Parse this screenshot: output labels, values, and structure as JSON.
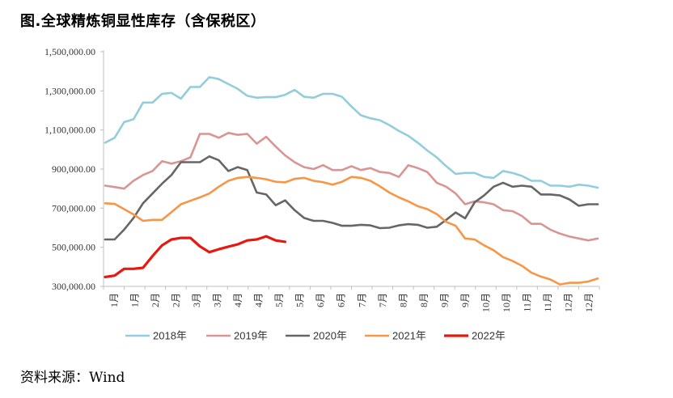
{
  "title": "图.全球精炼铜显性库存（含保税区）",
  "source": "资料来源：Wind",
  "chart_data": {
    "type": "line",
    "title": "图.全球精炼铜显性库存（含保税区）",
    "ylim": [
      300000,
      1500000
    ],
    "y_ticks": [
      "300,000.00",
      "500,000.00",
      "700,000.00",
      "900,000.00",
      "1,100,000.00",
      "1,300,000.00",
      "1,500,000.00"
    ],
    "y_tick_values": [
      300000,
      500000,
      700000,
      900000,
      1100000,
      1300000,
      1500000
    ],
    "x_labels": [
      "1月",
      "1月",
      "2月",
      "2月",
      "3月",
      "3月",
      "4月",
      "4月",
      "5月",
      "5月",
      "6月",
      "6月",
      "7月",
      "7月",
      "8月",
      "8月",
      "9月",
      "9月",
      "10月",
      "10月",
      "11月",
      "11月",
      "12月",
      "12月"
    ],
    "legend_position": "bottom",
    "grid": false,
    "series": [
      {
        "name": "2018年",
        "color": "#92CDDC",
        "values": [
          1035000,
          1060000,
          1140000,
          1155000,
          1240000,
          1240000,
          1285000,
          1290000,
          1260000,
          1320000,
          1320000,
          1370000,
          1360000,
          1335000,
          1310000,
          1275000,
          1265000,
          1268000,
          1268000,
          1280000,
          1305000,
          1270000,
          1265000,
          1285000,
          1285000,
          1270000,
          1220000,
          1175000,
          1160000,
          1150000,
          1125000,
          1095000,
          1070000,
          1035000,
          995000,
          960000,
          915000,
          875000,
          880000,
          880000,
          860000,
          855000,
          890000,
          880000,
          865000,
          840000,
          840000,
          815000,
          815000,
          810000,
          820000,
          815000,
          805000
        ]
      },
      {
        "name": "2019年",
        "color": "#D99594",
        "values": [
          815000,
          808000,
          800000,
          840000,
          870000,
          890000,
          940000,
          928000,
          940000,
          960000,
          1080000,
          1080000,
          1060000,
          1085000,
          1075000,
          1080000,
          1030000,
          1065000,
          1015000,
          970000,
          935000,
          910000,
          900000,
          920000,
          895000,
          895000,
          915000,
          895000,
          905000,
          885000,
          880000,
          860000,
          920000,
          905000,
          885000,
          830000,
          810000,
          775000,
          720000,
          735000,
          730000,
          720000,
          690000,
          685000,
          660000,
          620000,
          620000,
          590000,
          570000,
          555000,
          545000,
          535000,
          545000
        ]
      },
      {
        "name": "2020年",
        "color": "#666666",
        "values": [
          540000,
          540000,
          590000,
          650000,
          725000,
          775000,
          825000,
          870000,
          935000,
          935000,
          935000,
          965000,
          945000,
          890000,
          910000,
          895000,
          780000,
          770000,
          715000,
          740000,
          690000,
          650000,
          635000,
          635000,
          625000,
          610000,
          610000,
          615000,
          612000,
          598000,
          600000,
          612000,
          618000,
          615000,
          600000,
          605000,
          640000,
          678000,
          648000,
          730000,
          765000,
          810000,
          830000,
          810000,
          815000,
          810000,
          770000,
          770000,
          765000,
          745000,
          712000,
          720000,
          720000
        ]
      },
      {
        "name": "2021年",
        "color": "#F79646",
        "values": [
          725000,
          722000,
          695000,
          668000,
          635000,
          640000,
          640000,
          680000,
          720000,
          738000,
          755000,
          775000,
          810000,
          840000,
          855000,
          860000,
          855000,
          848000,
          835000,
          832000,
          850000,
          855000,
          840000,
          833000,
          820000,
          835000,
          860000,
          855000,
          840000,
          812000,
          780000,
          755000,
          735000,
          710000,
          695000,
          670000,
          630000,
          610000,
          545000,
          540000,
          510000,
          485000,
          450000,
          430000,
          405000,
          370000,
          350000,
          335000,
          310000,
          318000,
          318000,
          325000,
          340000
        ]
      },
      {
        "name": "2022年",
        "color": "#E8170F",
        "values": [
          348000,
          355000,
          390000,
          390000,
          395000,
          455000,
          510000,
          540000,
          548000,
          548000,
          505000,
          475000,
          490000,
          503000,
          515000,
          535000,
          540000,
          556000,
          535000,
          528000
        ]
      }
    ]
  }
}
